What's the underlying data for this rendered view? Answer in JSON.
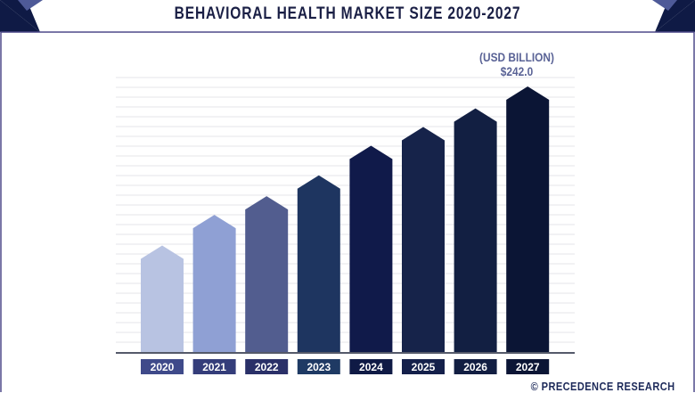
{
  "chart_data": {
    "type": "bar",
    "title": "BEHAVIORAL HEALTH MARKET SIZE 2020-2027",
    "unit_label": "(USD BILLION)",
    "categories": [
      "2020",
      "2021",
      "2022",
      "2023",
      "2024",
      "2025",
      "2026",
      "2027"
    ],
    "values": [
      97,
      125,
      142,
      161,
      188,
      205,
      222,
      242.0
    ],
    "data_labels": {
      "2027": "$242.0"
    },
    "ylim": [
      0,
      242
    ],
    "grid": true,
    "bar_colors": [
      "#b8c3e2",
      "#8fa0d4",
      "#525d8f",
      "#1e3560",
      "#101a4a",
      "#16234a",
      "#121f42",
      "#0b1535"
    ],
    "label_colors": [
      "#3f4a8a",
      "#343d7a",
      "#2a3068",
      "#1f3a64",
      "#0f1a45",
      "#14204a",
      "#121e42",
      "#0b1535"
    ]
  },
  "credit": "© PRECEDENCE RESEARCH"
}
